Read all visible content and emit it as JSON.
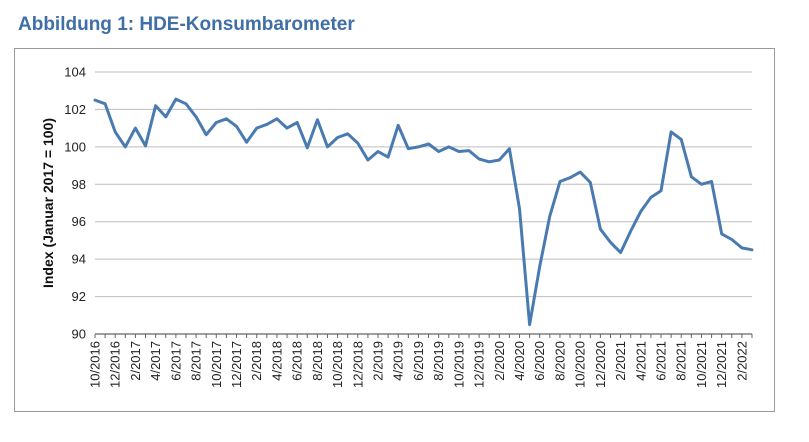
{
  "figure": {
    "title": "Abbildung 1: HDE-Konsumbarometer"
  },
  "chart_data": {
    "type": "line",
    "title": "",
    "xlabel": "",
    "ylabel": "Index (Januar 2017 = 100)",
    "ylim": [
      90,
      104
    ],
    "yticks": [
      90,
      92,
      94,
      96,
      98,
      100,
      102,
      104
    ],
    "grid": "horizontal",
    "legend": "none",
    "line_color": "#4a7bb0",
    "x_tick_labels": [
      "10/2016",
      "12/2016",
      "2/2017",
      "4/2017",
      "6/2017",
      "8/2017",
      "10/2017",
      "12/2017",
      "2/2018",
      "4/2018",
      "6/2018",
      "8/2018",
      "10/2018",
      "12/2018",
      "2/2019",
      "4/2019",
      "6/2019",
      "8/2019",
      "10/2019",
      "12/2019",
      "2/2020",
      "4/2020",
      "6/2020",
      "8/2020",
      "10/2020",
      "12/2020",
      "2/2021",
      "4/2021",
      "6/2021",
      "8/2021",
      "10/2021",
      "12/2021",
      "2/2022"
    ],
    "x": [
      "10/2016",
      "11/2016",
      "12/2016",
      "1/2017",
      "2/2017",
      "3/2017",
      "4/2017",
      "5/2017",
      "6/2017",
      "7/2017",
      "8/2017",
      "9/2017",
      "10/2017",
      "11/2017",
      "12/2017",
      "1/2018",
      "2/2018",
      "3/2018",
      "4/2018",
      "5/2018",
      "6/2018",
      "7/2018",
      "8/2018",
      "9/2018",
      "10/2018",
      "11/2018",
      "12/2018",
      "1/2019",
      "2/2019",
      "3/2019",
      "4/2019",
      "5/2019",
      "6/2019",
      "7/2019",
      "8/2019",
      "9/2019",
      "10/2019",
      "11/2019",
      "12/2019",
      "1/2020",
      "2/2020",
      "3/2020",
      "4/2020",
      "5/2020",
      "6/2020",
      "7/2020",
      "8/2020",
      "9/2020",
      "10/2020",
      "11/2020",
      "12/2020",
      "1/2021",
      "2/2021",
      "3/2021",
      "4/2021",
      "5/2021",
      "6/2021",
      "7/2021",
      "8/2021",
      "9/2021",
      "10/2021",
      "11/2021",
      "12/2021",
      "1/2022",
      "2/2022",
      "3/2022"
    ],
    "series": [
      {
        "values": [
          102.5,
          102.3,
          100.8,
          100.0,
          101.0,
          100.05,
          102.2,
          101.6,
          102.55,
          102.3,
          101.6,
          100.65,
          101.3,
          101.5,
          101.1,
          100.25,
          101.0,
          101.2,
          101.5,
          101.0,
          101.3,
          99.95,
          101.45,
          100.0,
          100.5,
          100.7,
          100.2,
          99.3,
          99.75,
          99.45,
          101.15,
          99.9,
          100.0,
          100.15,
          99.75,
          100.0,
          99.75,
          99.8,
          99.35,
          99.2,
          99.3,
          99.9,
          96.7,
          90.5,
          93.6,
          96.3,
          98.15,
          98.35,
          98.65,
          98.1,
          95.6,
          94.9,
          94.35,
          95.5,
          96.55,
          97.3,
          97.65,
          100.8,
          100.4,
          98.4,
          98.0,
          98.15,
          95.35,
          95.05,
          94.6,
          94.5
        ]
      }
    ]
  }
}
